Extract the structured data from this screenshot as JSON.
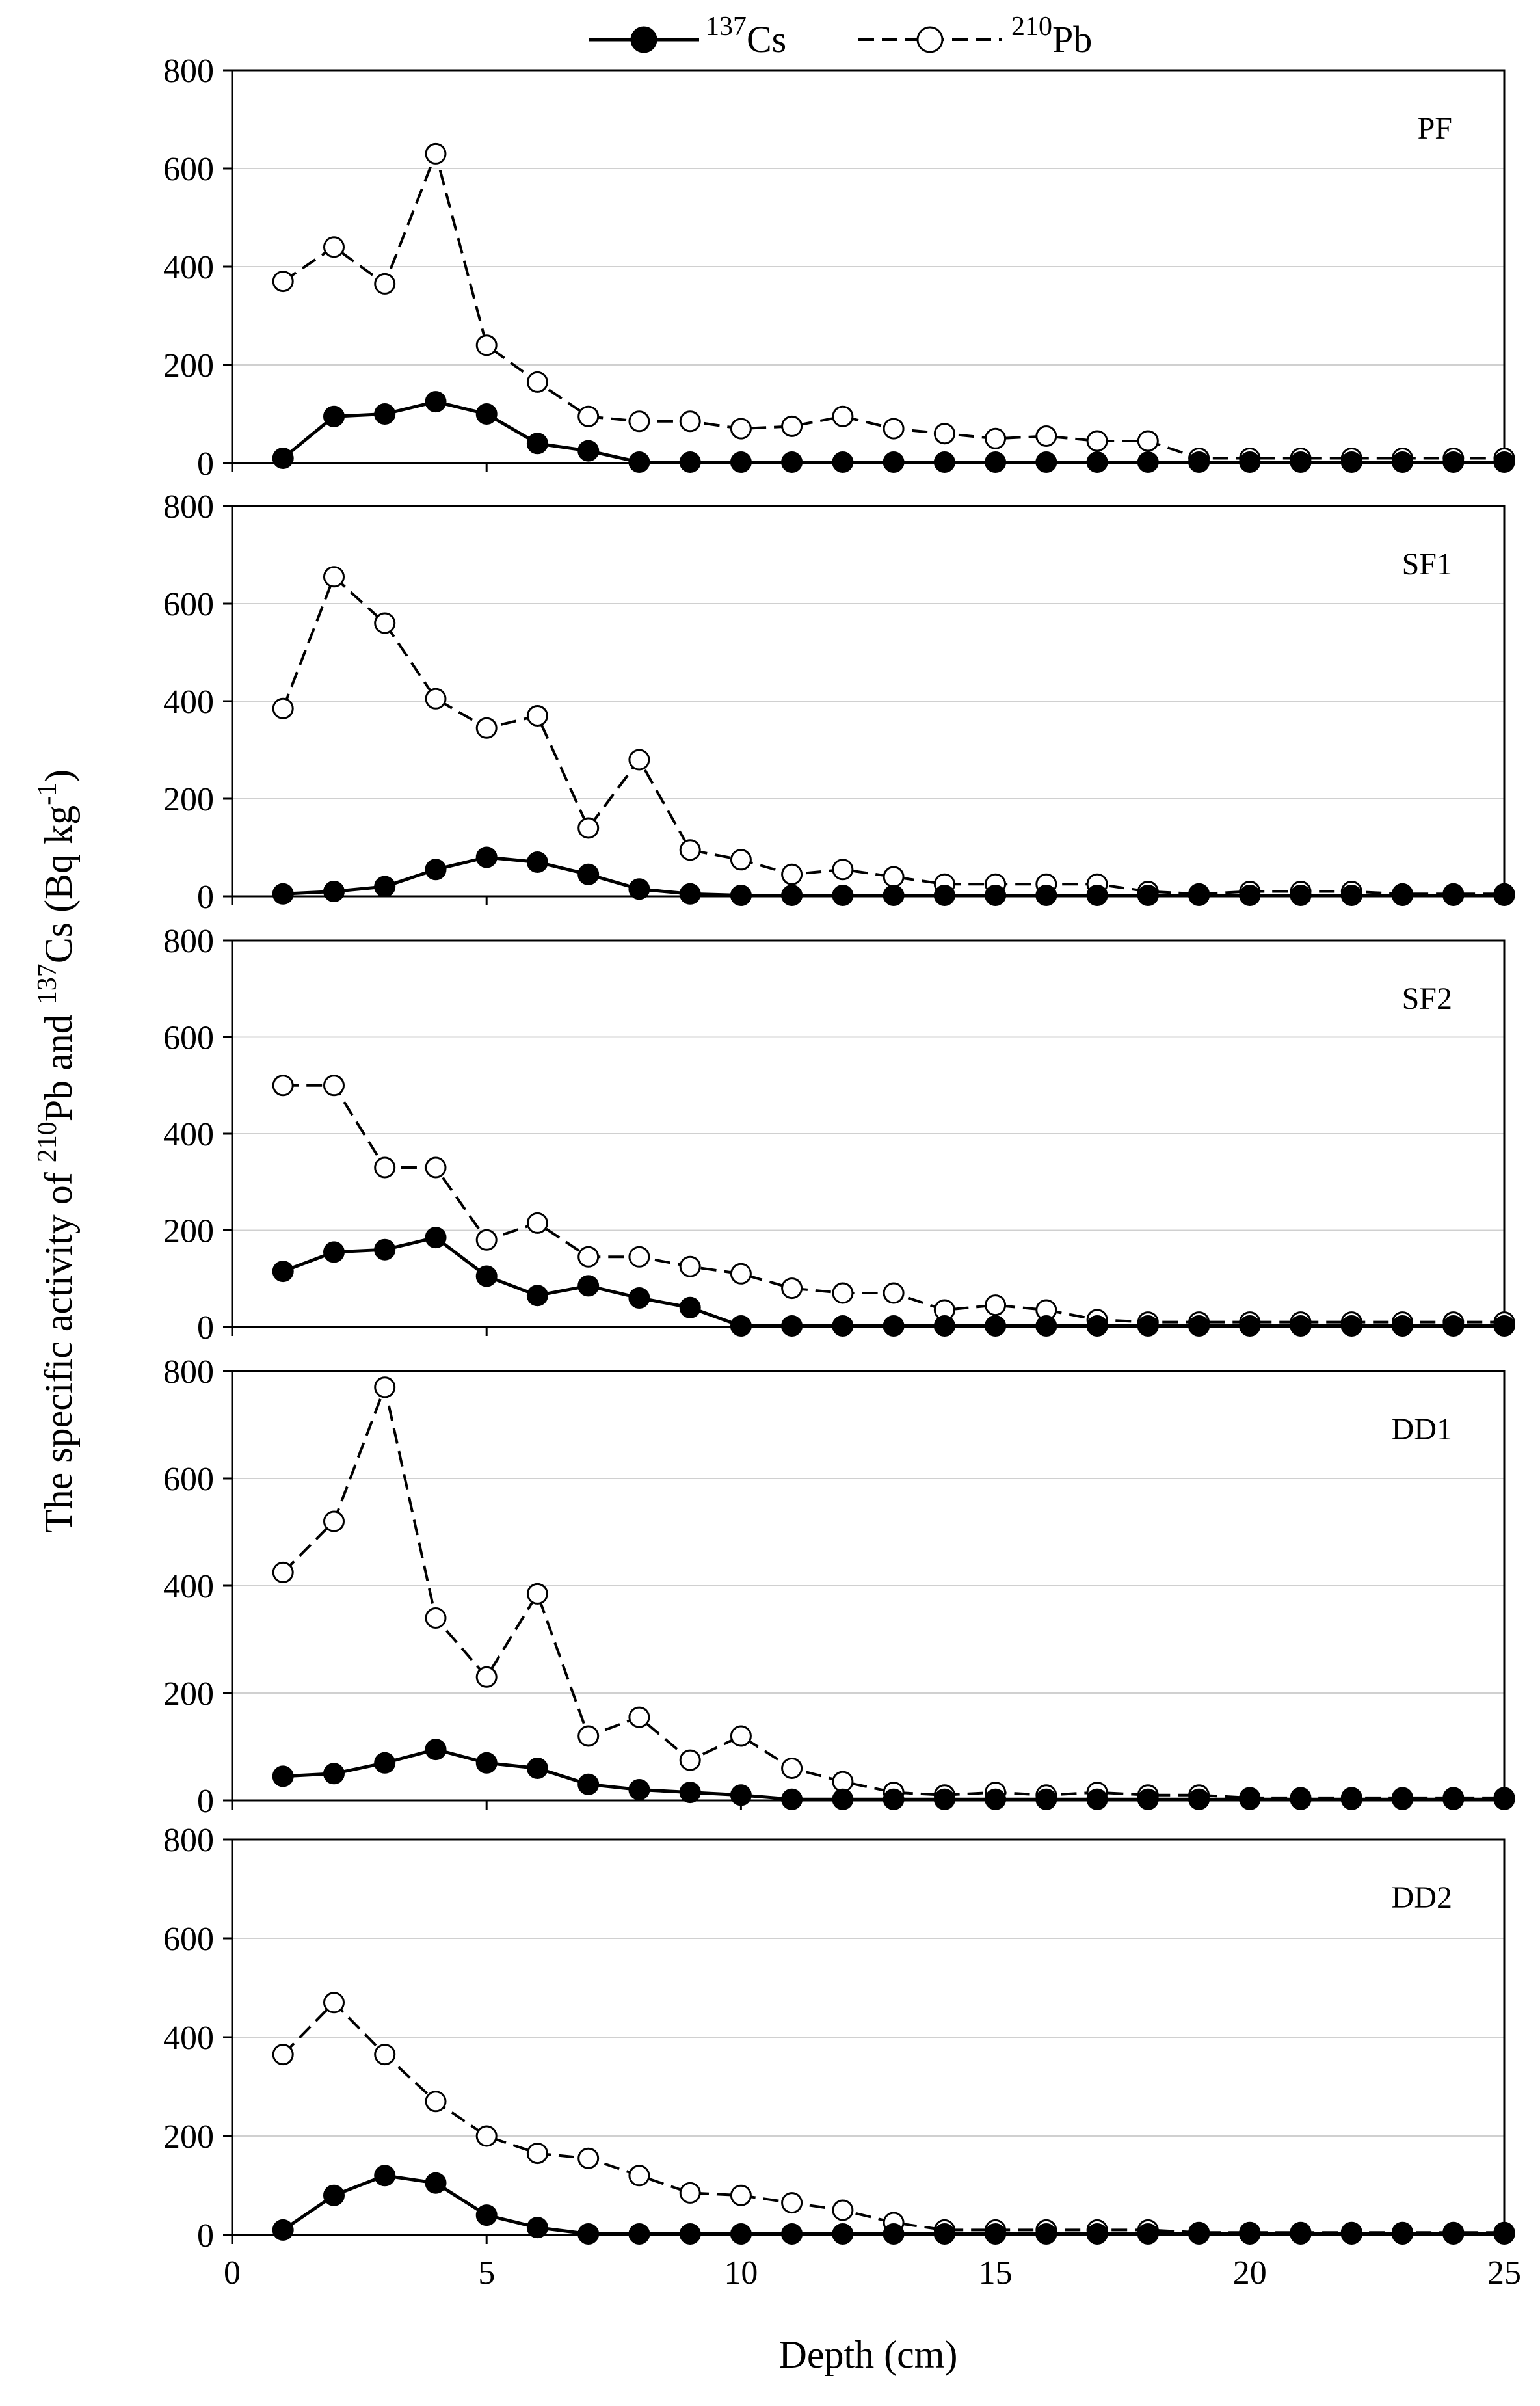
{
  "legend": {
    "series1": {
      "sup": "137",
      "base": "Cs"
    },
    "series2": {
      "sup": "210",
      "base": "Pb"
    }
  },
  "y_title": {
    "part1": "The specific activity of ",
    "sup1": "210",
    "part2": "Pb and ",
    "sup2": "137",
    "part3": "Cs (Bq kg",
    "sup3": "-1",
    "part4": ")"
  },
  "x_title": "Depth (cm)",
  "colors": {
    "cs_fill": "#000000",
    "pb_fill": "#ffffff",
    "line": "#000000",
    "grid": "#d0d0d0"
  },
  "chart_data": [
    {
      "type": "line",
      "panel": "PF",
      "title": "PF",
      "xlabel": "Depth (cm)",
      "ylabel": "The specific activity of 210Pb and 137Cs (Bq kg-1)",
      "xlim": [
        0,
        25
      ],
      "ylim": [
        0,
        800
      ],
      "x": [
        1,
        2,
        3,
        4,
        5,
        6,
        7,
        8,
        9,
        10,
        11,
        12,
        13,
        14,
        15,
        16,
        17,
        18,
        19,
        20,
        21,
        22,
        23,
        24,
        25
      ],
      "series": [
        {
          "name": "137Cs",
          "values": [
            10,
            95,
            100,
            125,
            100,
            40,
            25,
            2,
            2,
            2,
            2,
            2,
            2,
            2,
            2,
            2,
            2,
            2,
            2,
            2,
            2,
            2,
            2,
            2,
            2
          ]
        },
        {
          "name": "210Pb",
          "values": [
            370,
            440,
            365,
            630,
            240,
            165,
            95,
            85,
            85,
            70,
            75,
            95,
            70,
            60,
            50,
            55,
            45,
            45,
            10,
            10,
            10,
            10,
            10,
            10,
            10
          ]
        }
      ]
    },
    {
      "type": "line",
      "panel": "SF1",
      "title": "SF1",
      "xlabel": "Depth (cm)",
      "ylabel": "The specific activity of 210Pb and 137Cs (Bq kg-1)",
      "xlim": [
        0,
        25
      ],
      "ylim": [
        0,
        800
      ],
      "x": [
        1,
        2,
        3,
        4,
        5,
        6,
        7,
        8,
        9,
        10,
        11,
        12,
        13,
        14,
        15,
        16,
        17,
        18,
        19,
        20,
        21,
        22,
        23,
        24,
        25
      ],
      "series": [
        {
          "name": "137Cs",
          "values": [
            5,
            10,
            20,
            55,
            80,
            70,
            45,
            15,
            5,
            2,
            2,
            2,
            2,
            2,
            2,
            2,
            2,
            2,
            2,
            2,
            2,
            2,
            2,
            2,
            2
          ]
        },
        {
          "name": "210Pb",
          "values": [
            385,
            655,
            560,
            405,
            345,
            370,
            140,
            280,
            95,
            75,
            45,
            55,
            40,
            25,
            25,
            25,
            25,
            10,
            5,
            10,
            10,
            10,
            5,
            5,
            5
          ]
        }
      ]
    },
    {
      "type": "line",
      "panel": "SF2",
      "title": "SF2",
      "xlabel": "Depth (cm)",
      "ylabel": "The specific activity of 210Pb and 137Cs (Bq kg-1)",
      "xlim": [
        0,
        25
      ],
      "ylim": [
        0,
        800
      ],
      "x": [
        1,
        2,
        3,
        4,
        5,
        6,
        7,
        8,
        9,
        10,
        11,
        12,
        13,
        14,
        15,
        16,
        17,
        18,
        19,
        20,
        21,
        22,
        23,
        24,
        25
      ],
      "series": [
        {
          "name": "137Cs",
          "values": [
            115,
            155,
            160,
            185,
            105,
            65,
            85,
            60,
            40,
            2,
            2,
            2,
            2,
            2,
            2,
            2,
            2,
            2,
            2,
            2,
            2,
            2,
            2,
            2,
            2
          ]
        },
        {
          "name": "210Pb",
          "values": [
            500,
            500,
            330,
            330,
            180,
            215,
            145,
            145,
            125,
            110,
            80,
            70,
            70,
            35,
            45,
            35,
            15,
            10,
            10,
            10,
            10,
            10,
            10,
            10,
            10
          ]
        }
      ]
    },
    {
      "type": "line",
      "panel": "DD1",
      "title": "DD1",
      "xlabel": "Depth (cm)",
      "ylabel": "The specific activity of 210Pb and 137Cs (Bq kg-1)",
      "xlim": [
        0,
        25
      ],
      "ylim": [
        0,
        800
      ],
      "x": [
        1,
        2,
        3,
        4,
        5,
        6,
        7,
        8,
        9,
        10,
        11,
        12,
        13,
        14,
        15,
        16,
        17,
        18,
        19,
        20,
        21,
        22,
        23,
        24,
        25
      ],
      "series": [
        {
          "name": "137Cs",
          "values": [
            45,
            50,
            70,
            95,
            70,
            60,
            30,
            20,
            15,
            10,
            2,
            2,
            2,
            2,
            2,
            2,
            2,
            2,
            2,
            2,
            2,
            2,
            2,
            2,
            2
          ]
        },
        {
          "name": "210Pb",
          "values": [
            425,
            520,
            770,
            340,
            230,
            385,
            120,
            155,
            75,
            120,
            60,
            35,
            15,
            10,
            15,
            10,
            15,
            10,
            10,
            5,
            5,
            5,
            5,
            5,
            5
          ]
        }
      ]
    },
    {
      "type": "line",
      "panel": "DD2",
      "title": "DD2",
      "xlabel": "Depth (cm)",
      "ylabel": "The specific activity of 210Pb and 137Cs (Bq kg-1)",
      "xlim": [
        0,
        25
      ],
      "ylim": [
        0,
        800
      ],
      "x": [
        1,
        2,
        3,
        4,
        5,
        6,
        7,
        8,
        9,
        10,
        11,
        12,
        13,
        14,
        15,
        16,
        17,
        18,
        19,
        20,
        21,
        22,
        23,
        24,
        25
      ],
      "series": [
        {
          "name": "137Cs",
          "values": [
            10,
            80,
            120,
            105,
            40,
            15,
            2,
            2,
            2,
            2,
            2,
            2,
            2,
            2,
            2,
            2,
            2,
            2,
            2,
            2,
            2,
            2,
            2,
            2,
            2
          ]
        },
        {
          "name": "210Pb",
          "values": [
            365,
            470,
            365,
            270,
            200,
            165,
            155,
            120,
            85,
            80,
            65,
            50,
            25,
            10,
            10,
            10,
            10,
            10,
            5,
            5,
            5,
            5,
            5,
            5,
            5
          ]
        }
      ]
    }
  ]
}
